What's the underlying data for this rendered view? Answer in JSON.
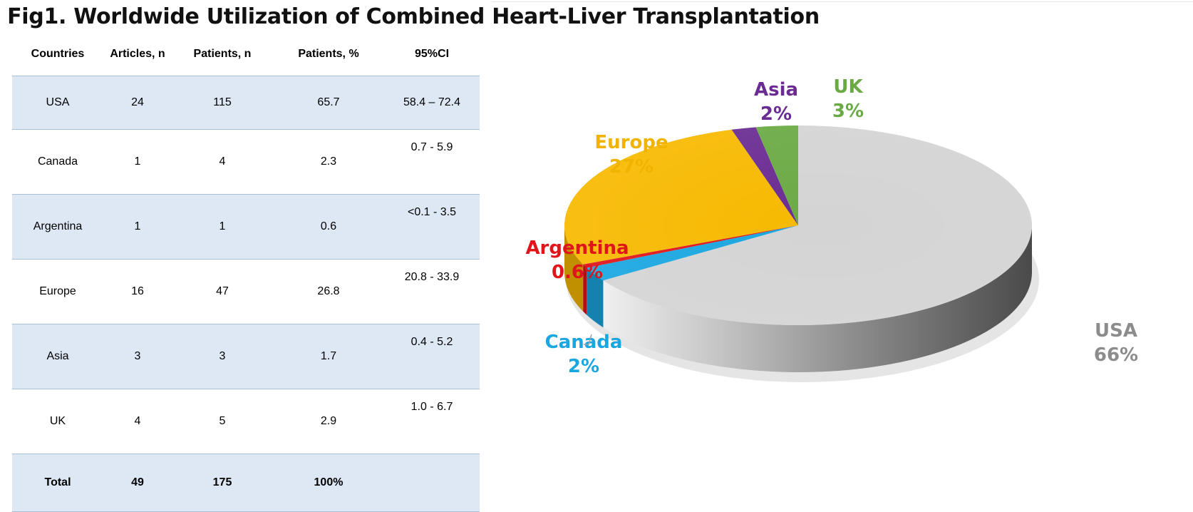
{
  "title": "Fig1. Worldwide Utilization of Combined Heart-Liver Transplantation",
  "table": {
    "headers": [
      "Countries",
      "Articles, n",
      "Patients, n",
      "Patients, %",
      "95%CI"
    ],
    "rows": [
      {
        "country": "USA",
        "articles": "24",
        "patients": "115",
        "percent": "65.7",
        "ci": "58.4 – 72.4"
      },
      {
        "country": "Canada",
        "articles": "1",
        "patients": "4",
        "percent": "2.3",
        "ci": "0.7 - 5.9"
      },
      {
        "country": "Argentina",
        "articles": "1",
        "patients": "1",
        "percent": "0.6",
        "ci": "<0.1 - 3.5"
      },
      {
        "country": "Europe",
        "articles": "16",
        "patients": "47",
        "percent": "26.8",
        "ci": "20.8 - 33.9"
      },
      {
        "country": "Asia",
        "articles": "3",
        "patients": "3",
        "percent": "1.7",
        "ci": "0.4 - 5.2"
      },
      {
        "country": "UK",
        "articles": "4",
        "patients": "5",
        "percent": "2.9",
        "ci": "1.0 - 6.7"
      }
    ],
    "total": {
      "country": "Total",
      "articles": "49",
      "patients": "175",
      "percent": "100%",
      "ci": ""
    }
  },
  "chart_data": {
    "type": "pie",
    "style": "3d",
    "slices": [
      {
        "name": "USA",
        "value": 65.7,
        "label": "66%",
        "color": "#d4d4d4",
        "label_color": "#8c8c8c"
      },
      {
        "name": "Canada",
        "value": 2.3,
        "label": "2%",
        "color": "#1aa7e0",
        "label_color": "#1aa7e0"
      },
      {
        "name": "Argentina",
        "value": 0.6,
        "label": "0.6%",
        "color": "#e0141b",
        "label_color": "#e0141b"
      },
      {
        "name": "Europe",
        "value": 26.8,
        "label": "27%",
        "color": "#f7b900",
        "label_color": "#f0b400"
      },
      {
        "name": "Asia",
        "value": 1.7,
        "label": "2%",
        "color": "#6a2c92",
        "label_color": "#6a2c92"
      },
      {
        "name": "UK",
        "value": 2.9,
        "label": "3%",
        "color": "#6aaa44",
        "label_color": "#6aaa44"
      }
    ]
  }
}
